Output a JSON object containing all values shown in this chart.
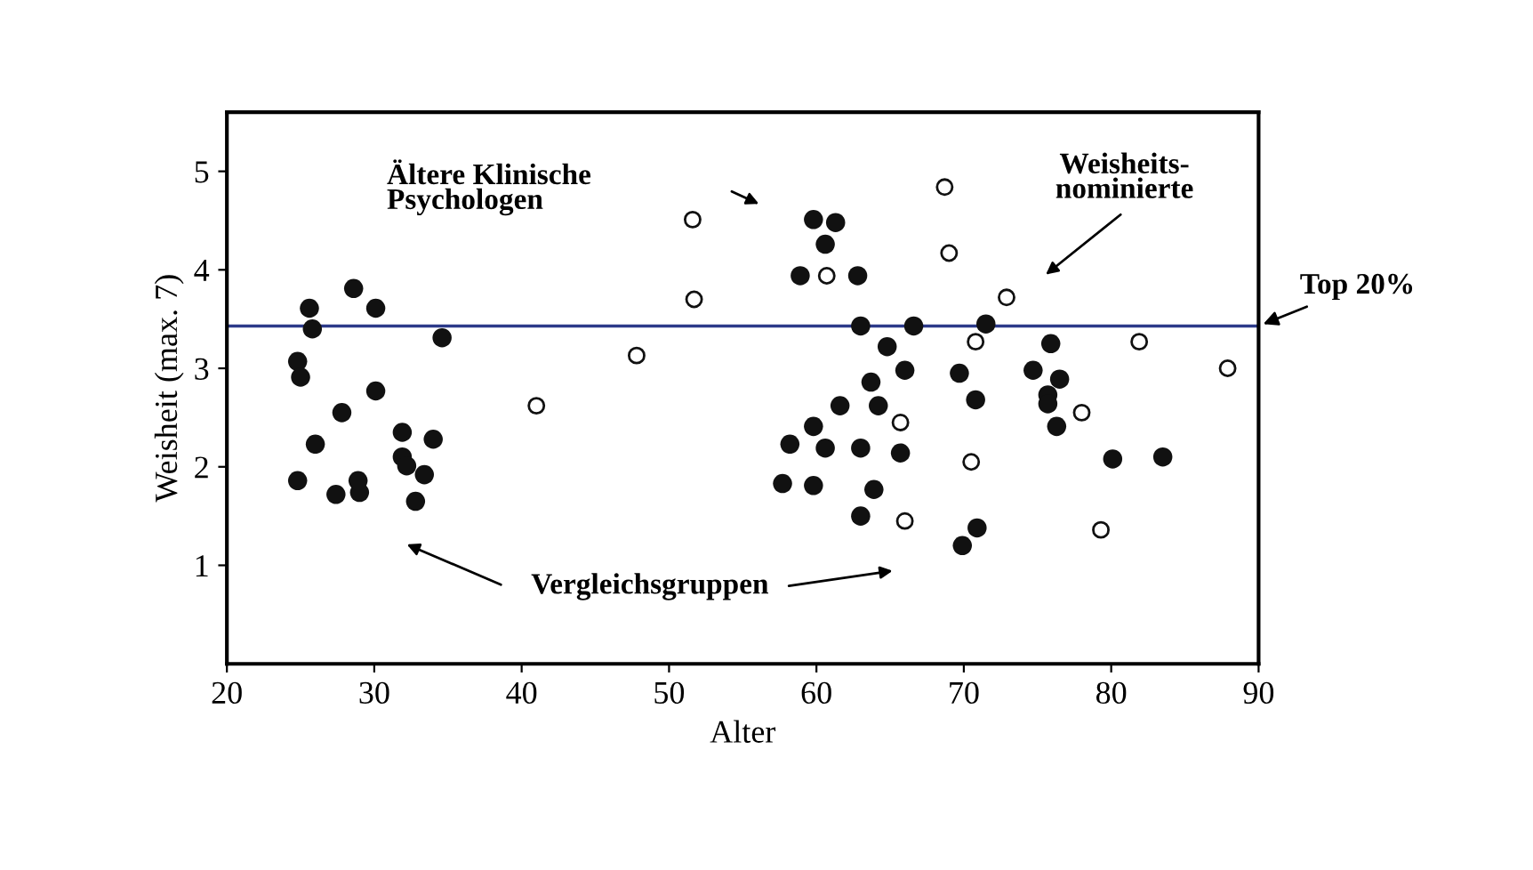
{
  "chart_data": {
    "type": "scatter",
    "xlabel": "Alter",
    "ylabel": "Weisheit (max. 7)",
    "xlim": [
      20,
      90
    ],
    "ylim": [
      0,
      5.6
    ],
    "xticks": [
      20,
      30,
      40,
      50,
      60,
      70,
      80,
      90
    ],
    "yticks": [
      1,
      2,
      3,
      4,
      5
    ],
    "grid": false,
    "marker": "circle",
    "series": [
      {
        "color": "#111111",
        "x": [
          25.6,
          25.8,
          24.8,
          25.0,
          28.6,
          30.1,
          34.6,
          30.1,
          27.8,
          26.0,
          24.8,
          27.4,
          29.0,
          28.9,
          31.9,
          31.9,
          34.0,
          33.4,
          32.8,
          32.2,
          59.8,
          61.3,
          60.6,
          58.9,
          62.8,
          63.0,
          64.8,
          66.6,
          66.0,
          63.7,
          61.6,
          64.2,
          59.8,
          58.2,
          60.6,
          63.0,
          65.7,
          57.7,
          59.8,
          63.9,
          63.0,
          69.7,
          70.8,
          69.9,
          70.9,
          71.5,
          75.9,
          74.7,
          75.7,
          76.5,
          75.7,
          76.3,
          80.1,
          83.5
        ],
        "values": [
          3.61,
          3.4,
          3.07,
          2.91,
          3.81,
          3.61,
          3.31,
          2.77,
          2.55,
          2.23,
          1.86,
          1.72,
          1.74,
          1.86,
          2.35,
          2.1,
          2.28,
          1.92,
          1.65,
          2.01,
          4.51,
          4.48,
          4.26,
          3.94,
          3.94,
          3.43,
          3.22,
          3.43,
          2.98,
          2.86,
          2.62,
          2.62,
          2.41,
          2.23,
          2.19,
          2.19,
          2.14,
          1.83,
          1.81,
          1.77,
          1.5,
          2.95,
          2.68,
          1.2,
          1.38,
          3.45,
          3.25,
          2.98,
          2.73,
          2.89,
          2.64,
          2.41,
          2.08,
          2.1
        ]
      },
      {
        "color": "#ffffff",
        "x": [
          41.0,
          51.6,
          51.7,
          47.8,
          60.7,
          68.7,
          69.0,
          72.9,
          70.8,
          70.5,
          66.0,
          65.7,
          81.9,
          87.9,
          78.0,
          79.3
        ],
        "values": [
          2.62,
          4.51,
          3.7,
          3.13,
          3.94,
          4.84,
          4.17,
          3.72,
          3.27,
          2.05,
          1.45,
          2.45,
          3.27,
          3.0,
          2.55,
          1.36
        ]
      }
    ],
    "ref_lines": [
      {
        "axis": "y",
        "value": 3.43,
        "label": "Top 20%",
        "color": "#2c3a8a"
      }
    ],
    "annotations": [
      "Ältere Klinische\nPsychologen",
      "Weisheits-\nnominierte",
      "Vergleichsgruppen"
    ]
  }
}
